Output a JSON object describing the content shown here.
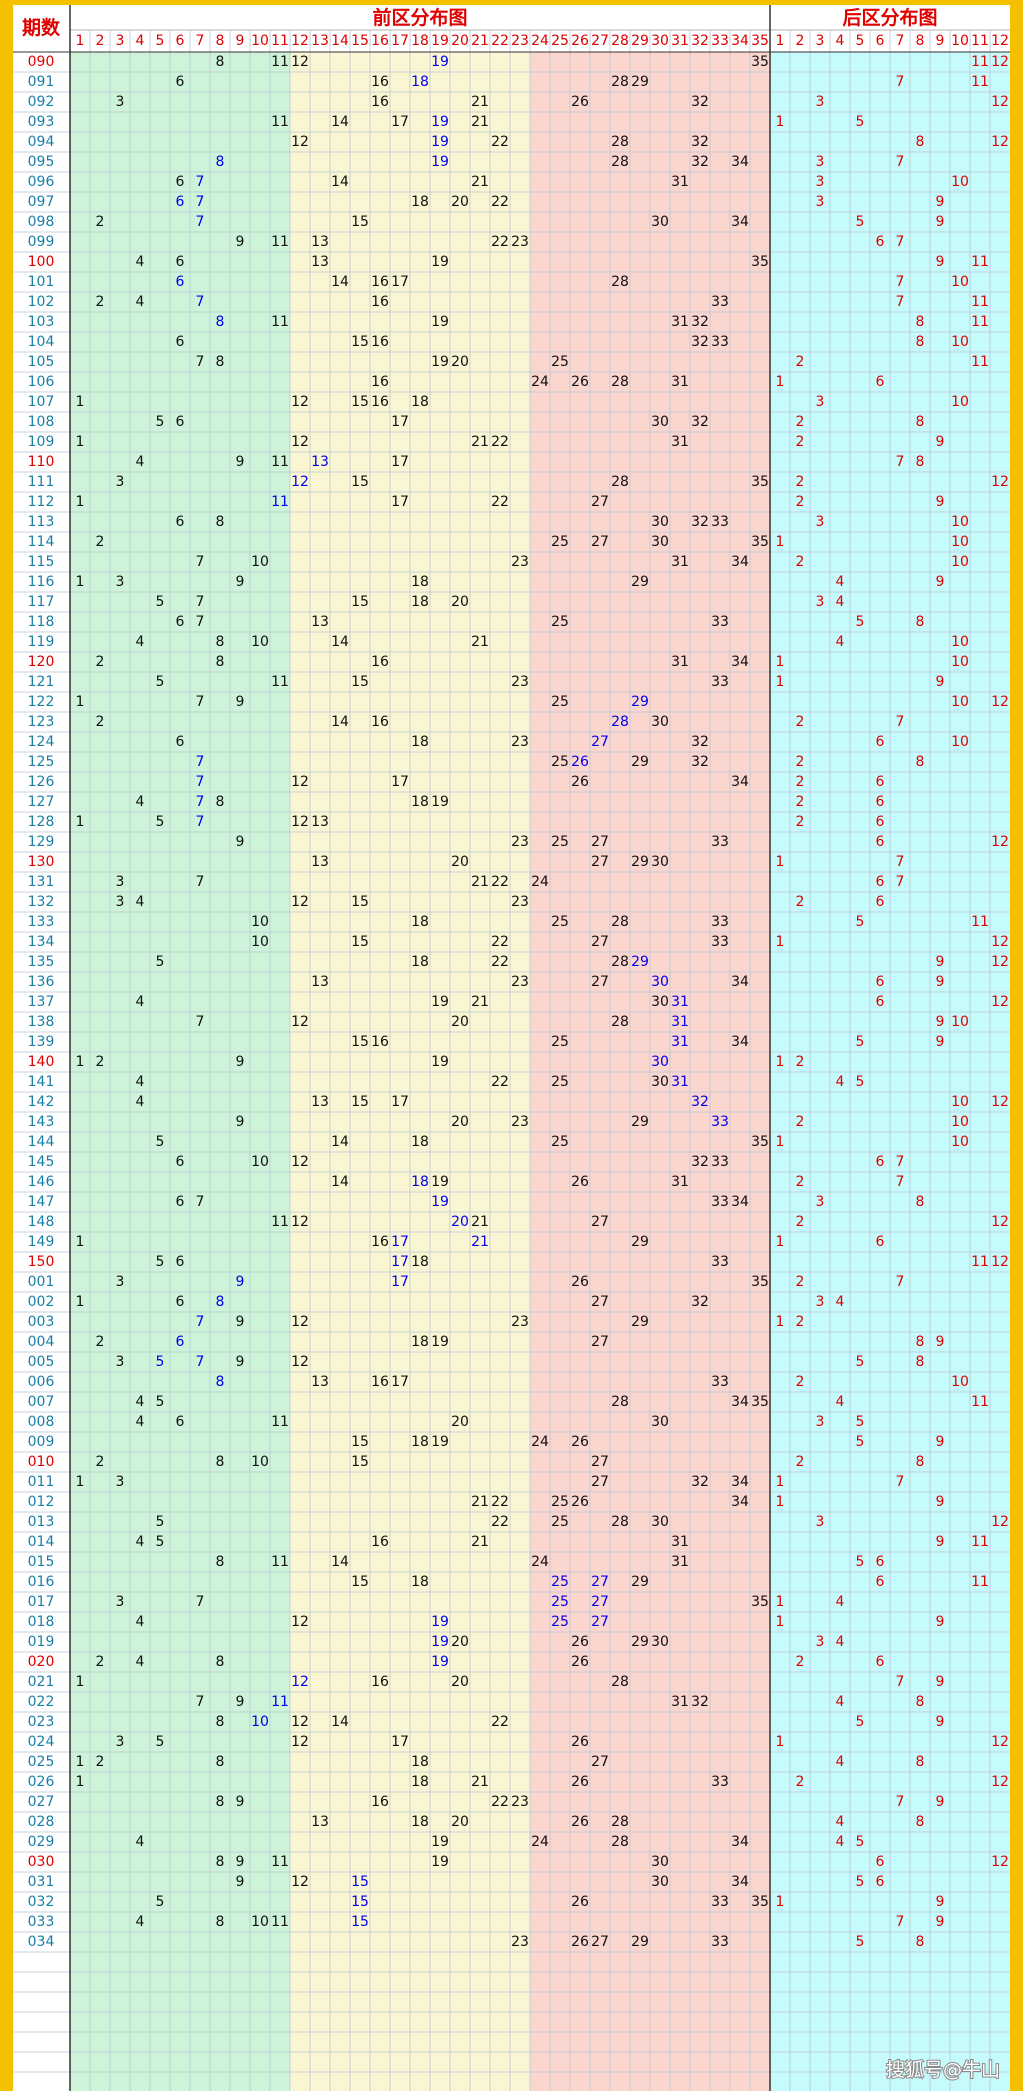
{
  "header": {
    "issue_label": "期数",
    "front_title": "前区分布图",
    "back_title": "后区分布图"
  },
  "front_columns": [
    1,
    2,
    3,
    4,
    5,
    6,
    7,
    8,
    9,
    10,
    11,
    12,
    13,
    14,
    15,
    16,
    17,
    18,
    19,
    20,
    21,
    22,
    23,
    24,
    25,
    26,
    27,
    28,
    29,
    30,
    31,
    32,
    33,
    34,
    35
  ],
  "back_columns": [
    1,
    2,
    3,
    4,
    5,
    6,
    7,
    8,
    9,
    10,
    11,
    12
  ],
  "rows": [
    {
      "issue": "090",
      "front": [
        8,
        11,
        12,
        19,
        35
      ],
      "back": [
        11,
        12
      ],
      "blue": [
        19
      ]
    },
    {
      "issue": "091",
      "front": [
        6,
        16,
        18,
        28,
        29
      ],
      "back": [
        7,
        11
      ],
      "blue": [
        18
      ]
    },
    {
      "issue": "092",
      "front": [
        3,
        16,
        21,
        26,
        32
      ],
      "back": [
        3,
        12
      ]
    },
    {
      "issue": "093",
      "front": [
        11,
        14,
        17,
        19,
        21
      ],
      "back": [
        1,
        5
      ],
      "blue": [
        19
      ]
    },
    {
      "issue": "094",
      "front": [
        12,
        19,
        22,
        28,
        32
      ],
      "back": [
        8,
        12
      ],
      "blue": [
        19
      ]
    },
    {
      "issue": "095",
      "front": [
        8,
        19,
        28,
        32,
        34
      ],
      "back": [
        3,
        7
      ],
      "blue": [
        8,
        19
      ]
    },
    {
      "issue": "096",
      "front": [
        6,
        7,
        14,
        21,
        31
      ],
      "back": [
        3,
        10
      ],
      "blue": [
        7
      ]
    },
    {
      "issue": "097",
      "front": [
        6,
        7,
        18,
        20,
        22
      ],
      "back": [
        3,
        9
      ],
      "blue": [
        6,
        7
      ]
    },
    {
      "issue": "098",
      "front": [
        2,
        7,
        15,
        30,
        34
      ],
      "back": [
        5,
        9
      ],
      "blue": [
        7
      ]
    },
    {
      "issue": "099",
      "front": [
        9,
        11,
        13,
        22,
        23
      ],
      "back": [
        6,
        7
      ]
    },
    {
      "issue": "100",
      "front": [
        4,
        6,
        13,
        19,
        35
      ],
      "back": [
        9,
        11
      ]
    },
    {
      "issue": "101",
      "front": [
        6,
        14,
        16,
        17,
        28
      ],
      "back": [
        7,
        10
      ],
      "blue": [
        6
      ]
    },
    {
      "issue": "102",
      "front": [
        2,
        4,
        7,
        16,
        33
      ],
      "back": [
        7,
        11
      ],
      "blue": [
        7
      ]
    },
    {
      "issue": "103",
      "front": [
        8,
        11,
        19,
        31,
        32
      ],
      "back": [
        8,
        11
      ],
      "blue": [
        8
      ]
    },
    {
      "issue": "104",
      "front": [
        6,
        15,
        16,
        32,
        33
      ],
      "back": [
        8,
        10
      ]
    },
    {
      "issue": "105",
      "front": [
        7,
        8,
        19,
        20,
        25
      ],
      "back": [
        2,
        11
      ]
    },
    {
      "issue": "106",
      "front": [
        16,
        24,
        26,
        28,
        31
      ],
      "back": [
        1,
        6
      ]
    },
    {
      "issue": "107",
      "front": [
        1,
        12,
        15,
        16,
        18
      ],
      "back": [
        3,
        10
      ]
    },
    {
      "issue": "108",
      "front": [
        5,
        6,
        17,
        30,
        32
      ],
      "back": [
        2,
        8
      ]
    },
    {
      "issue": "109",
      "front": [
        1,
        12,
        21,
        22,
        31
      ],
      "back": [
        2,
        9
      ]
    },
    {
      "issue": "110",
      "front": [
        4,
        9,
        11,
        13,
        17
      ],
      "back": [
        7,
        8
      ],
      "blue": [
        13
      ]
    },
    {
      "issue": "111",
      "front": [
        3,
        12,
        15,
        28,
        35
      ],
      "back": [
        2,
        12
      ],
      "blue": [
        12
      ]
    },
    {
      "issue": "112",
      "front": [
        1,
        11,
        17,
        22,
        27
      ],
      "back": [
        2,
        9
      ],
      "blue": [
        11
      ]
    },
    {
      "issue": "113",
      "front": [
        6,
        8,
        30,
        32,
        33
      ],
      "back": [
        3,
        10
      ]
    },
    {
      "issue": "114",
      "front": [
        2,
        25,
        27,
        30,
        35
      ],
      "back": [
        1,
        10
      ]
    },
    {
      "issue": "115",
      "front": [
        7,
        10,
        23,
        31,
        34
      ],
      "back": [
        2,
        10
      ]
    },
    {
      "issue": "116",
      "front": [
        1,
        3,
        9,
        18,
        29
      ],
      "back": [
        4,
        9
      ]
    },
    {
      "issue": "117",
      "front": [
        5,
        7,
        15,
        18,
        20
      ],
      "back": [
        3,
        4
      ]
    },
    {
      "issue": "118",
      "front": [
        6,
        7,
        13,
        25,
        33
      ],
      "back": [
        5,
        8
      ]
    },
    {
      "issue": "119",
      "front": [
        4,
        8,
        10,
        14,
        21
      ],
      "back": [
        4,
        10
      ]
    },
    {
      "issue": "120",
      "front": [
        2,
        8,
        16,
        31,
        34
      ],
      "back": [
        1,
        10
      ]
    },
    {
      "issue": "121",
      "front": [
        5,
        11,
        15,
        23,
        33
      ],
      "back": [
        1,
        9
      ]
    },
    {
      "issue": "122",
      "front": [
        1,
        7,
        9,
        25,
        29
      ],
      "back": [
        10,
        12
      ],
      "blue": [
        29
      ]
    },
    {
      "issue": "123",
      "front": [
        2,
        14,
        16,
        28,
        30
      ],
      "back": [
        2,
        7
      ],
      "blue": [
        28
      ]
    },
    {
      "issue": "124",
      "front": [
        6,
        18,
        23,
        27,
        32
      ],
      "back": [
        6,
        10
      ],
      "blue": [
        27
      ]
    },
    {
      "issue": "125",
      "front": [
        7,
        25,
        26,
        29,
        32
      ],
      "back": [
        2,
        8
      ],
      "blue": [
        7,
        26
      ]
    },
    {
      "issue": "126",
      "front": [
        7,
        12,
        17,
        26,
        34
      ],
      "back": [
        2,
        6
      ],
      "blue": [
        7
      ]
    },
    {
      "issue": "127",
      "front": [
        4,
        7,
        8,
        18,
        19
      ],
      "back": [
        2,
        6
      ],
      "blue": [
        7
      ]
    },
    {
      "issue": "128",
      "front": [
        1,
        5,
        7,
        12,
        13
      ],
      "back": [
        2,
        6
      ],
      "blue": [
        7
      ]
    },
    {
      "issue": "129",
      "front": [
        9,
        23,
        25,
        27,
        33
      ],
      "back": [
        6,
        12
      ]
    },
    {
      "issue": "130",
      "front": [
        13,
        20,
        27,
        29,
        30
      ],
      "back": [
        1,
        7
      ]
    },
    {
      "issue": "131",
      "front": [
        3,
        7,
        21,
        22,
        24
      ],
      "back": [
        6,
        7
      ]
    },
    {
      "issue": "132",
      "front": [
        3,
        4,
        12,
        15,
        23
      ],
      "back": [
        2,
        6
      ]
    },
    {
      "issue": "133",
      "front": [
        10,
        18,
        25,
        28,
        33
      ],
      "back": [
        5,
        11
      ]
    },
    {
      "issue": "134",
      "front": [
        10,
        15,
        22,
        27,
        33
      ],
      "back": [
        1,
        12
      ]
    },
    {
      "issue": "135",
      "front": [
        5,
        18,
        22,
        28,
        29
      ],
      "back": [
        9,
        12
      ],
      "blue": [
        29
      ]
    },
    {
      "issue": "136",
      "front": [
        13,
        23,
        27,
        30,
        34
      ],
      "back": [
        6,
        9
      ],
      "blue": [
        30
      ]
    },
    {
      "issue": "137",
      "front": [
        4,
        19,
        21,
        30,
        31
      ],
      "back": [
        6,
        12
      ],
      "blue": [
        31
      ]
    },
    {
      "issue": "138",
      "front": [
        7,
        12,
        20,
        28,
        31
      ],
      "back": [
        9,
        10
      ],
      "blue": [
        31
      ]
    },
    {
      "issue": "139",
      "front": [
        15,
        16,
        25,
        31,
        34
      ],
      "back": [
        5,
        9
      ],
      "blue": [
        31
      ]
    },
    {
      "issue": "140",
      "front": [
        1,
        2,
        9,
        19,
        30
      ],
      "back": [
        1,
        2
      ],
      "blue": [
        30
      ]
    },
    {
      "issue": "141",
      "front": [
        4,
        22,
        25,
        30,
        31
      ],
      "back": [
        4,
        5
      ],
      "blue": [
        31
      ]
    },
    {
      "issue": "142",
      "front": [
        4,
        13,
        15,
        17,
        32
      ],
      "back": [
        10,
        12
      ],
      "blue": [
        32
      ]
    },
    {
      "issue": "143",
      "front": [
        9,
        20,
        23,
        29,
        33
      ],
      "back": [
        2,
        10
      ],
      "blue": [
        33
      ]
    },
    {
      "issue": "144",
      "front": [
        5,
        14,
        18,
        25,
        35
      ],
      "back": [
        1,
        10
      ]
    },
    {
      "issue": "145",
      "front": [
        6,
        10,
        12,
        32,
        33
      ],
      "back": [
        6,
        7
      ]
    },
    {
      "issue": "146",
      "front": [
        14,
        18,
        19,
        26,
        31
      ],
      "back": [
        2,
        7
      ],
      "blue": [
        18
      ]
    },
    {
      "issue": "147",
      "front": [
        6,
        7,
        19,
        33,
        34
      ],
      "back": [
        3,
        8
      ],
      "blue": [
        19
      ]
    },
    {
      "issue": "148",
      "front": [
        11,
        12,
        20,
        21,
        27
      ],
      "back": [
        2,
        12
      ],
      "blue": [
        20
      ]
    },
    {
      "issue": "149",
      "front": [
        1,
        16,
        17,
        21,
        29
      ],
      "back": [
        1,
        6
      ],
      "blue": [
        17,
        21
      ]
    },
    {
      "issue": "150",
      "front": [
        5,
        6,
        17,
        18,
        33
      ],
      "back": [
        11,
        12
      ],
      "blue": [
        17
      ]
    },
    {
      "issue": "001",
      "front": [
        3,
        9,
        17,
        26,
        35
      ],
      "back": [
        2,
        7
      ],
      "blue": [
        9,
        17
      ]
    },
    {
      "issue": "002",
      "front": [
        1,
        6,
        8,
        27,
        32
      ],
      "back": [
        3,
        4
      ],
      "blue": [
        8
      ]
    },
    {
      "issue": "003",
      "front": [
        7,
        9,
        12,
        23,
        29
      ],
      "back": [
        1,
        2
      ],
      "blue": [
        7
      ]
    },
    {
      "issue": "004",
      "front": [
        2,
        6,
        18,
        19,
        27
      ],
      "back": [
        8,
        9
      ],
      "blue": [
        6
      ]
    },
    {
      "issue": "005",
      "front": [
        3,
        5,
        7,
        9,
        12
      ],
      "back": [
        5,
        8
      ],
      "blue": [
        5,
        7
      ]
    },
    {
      "issue": "006",
      "front": [
        8,
        13,
        16,
        17,
        33
      ],
      "back": [
        2,
        10
      ],
      "blue": [
        8
      ]
    },
    {
      "issue": "007",
      "front": [
        4,
        5,
        28,
        34,
        35
      ],
      "back": [
        4,
        11
      ]
    },
    {
      "issue": "008",
      "front": [
        4,
        6,
        11,
        20,
        30
      ],
      "back": [
        3,
        5
      ]
    },
    {
      "issue": "009",
      "front": [
        15,
        18,
        19,
        24,
        26
      ],
      "back": [
        5,
        9
      ]
    },
    {
      "issue": "010",
      "front": [
        2,
        8,
        10,
        15,
        27
      ],
      "back": [
        2,
        8
      ]
    },
    {
      "issue": "011",
      "front": [
        1,
        3,
        27,
        32,
        34
      ],
      "back": [
        1,
        7
      ]
    },
    {
      "issue": "012",
      "front": [
        21,
        22,
        25,
        26,
        34
      ],
      "back": [
        1,
        9
      ]
    },
    {
      "issue": "013",
      "front": [
        5,
        22,
        25,
        28,
        30
      ],
      "back": [
        3,
        12
      ]
    },
    {
      "issue": "014",
      "front": [
        4,
        5,
        16,
        21,
        31
      ],
      "back": [
        9,
        11
      ]
    },
    {
      "issue": "015",
      "front": [
        8,
        11,
        14,
        24,
        31
      ],
      "back": [
        5,
        6
      ]
    },
    {
      "issue": "016",
      "front": [
        15,
        18,
        25,
        27,
        29
      ],
      "back": [
        6,
        11
      ],
      "blue": [
        25,
        27
      ]
    },
    {
      "issue": "017",
      "front": [
        3,
        7,
        25,
        27,
        35
      ],
      "back": [
        1,
        4
      ],
      "blue": [
        25,
        27
      ]
    },
    {
      "issue": "018",
      "front": [
        4,
        12,
        19,
        25,
        27
      ],
      "back": [
        1,
        9
      ],
      "blue": [
        19,
        25,
        27
      ]
    },
    {
      "issue": "019",
      "front": [
        19,
        20,
        26,
        29,
        30
      ],
      "back": [
        3,
        4
      ],
      "blue": [
        19
      ]
    },
    {
      "issue": "020",
      "front": [
        2,
        4,
        8,
        19,
        26
      ],
      "back": [
        2,
        6
      ],
      "blue": [
        19
      ]
    },
    {
      "issue": "021",
      "front": [
        1,
        12,
        16,
        20,
        28
      ],
      "back": [
        7,
        9
      ],
      "blue": [
        12
      ]
    },
    {
      "issue": "022",
      "front": [
        7,
        9,
        11,
        31,
        32
      ],
      "back": [
        4,
        8
      ],
      "blue": [
        11
      ]
    },
    {
      "issue": "023",
      "front": [
        8,
        10,
        12,
        14,
        22
      ],
      "back": [
        5,
        9
      ],
      "blue": [
        10
      ]
    },
    {
      "issue": "024",
      "front": [
        3,
        5,
        12,
        17,
        26
      ],
      "back": [
        1,
        12
      ]
    },
    {
      "issue": "025",
      "front": [
        1,
        2,
        8,
        18,
        27
      ],
      "back": [
        4,
        8
      ]
    },
    {
      "issue": "026",
      "front": [
        1,
        18,
        21,
        26,
        33
      ],
      "back": [
        2,
        12
      ]
    },
    {
      "issue": "027",
      "front": [
        8,
        9,
        16,
        22,
        23
      ],
      "back": [
        7,
        9
      ]
    },
    {
      "issue": "028",
      "front": [
        13,
        18,
        20,
        26,
        28
      ],
      "back": [
        4,
        8
      ]
    },
    {
      "issue": "029",
      "front": [
        4,
        19,
        24,
        28,
        34
      ],
      "back": [
        4,
        5
      ]
    },
    {
      "issue": "030",
      "front": [
        8,
        9,
        11,
        19,
        30
      ],
      "back": [
        6,
        12
      ]
    },
    {
      "issue": "031",
      "front": [
        9,
        12,
        15,
        30,
        34
      ],
      "back": [
        5,
        6
      ],
      "blue": [
        15
      ]
    },
    {
      "issue": "032",
      "front": [
        5,
        15,
        26,
        33,
        35
      ],
      "back": [
        1,
        9
      ],
      "blue": [
        15
      ]
    },
    {
      "issue": "033",
      "front": [
        4,
        8,
        10,
        11,
        15
      ],
      "back": [
        7,
        9
      ],
      "blue": [
        15
      ]
    },
    {
      "issue": "034",
      "front": [
        23,
        26,
        27,
        29,
        33
      ],
      "back": [
        5,
        8
      ]
    }
  ],
  "watermark": "搜狐号@牛山"
}
